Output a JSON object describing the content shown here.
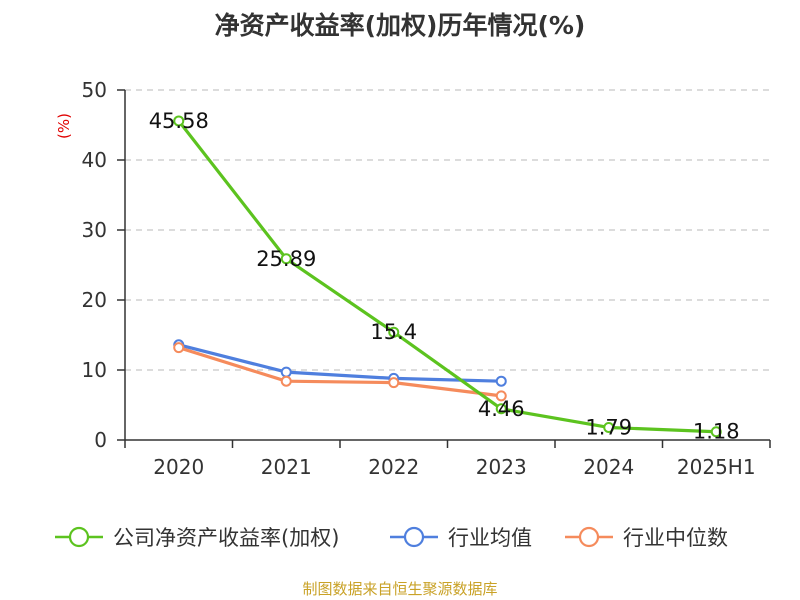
{
  "source_note": "制图数据来自恒生聚源数据库",
  "chart_data": {
    "type": "line",
    "title": "净资产收益率(加权)历年情况(%)",
    "ylabel": "(%)",
    "xlabel": "",
    "categories": [
      "2020",
      "2021",
      "2022",
      "2023",
      "2024",
      "2025H1"
    ],
    "ylim": [
      0,
      50
    ],
    "yticks": [
      0,
      10,
      20,
      30,
      40,
      50
    ],
    "grid": true,
    "legend_position": "bottom",
    "series": [
      {
        "name": "公司净资产收益率(加权)",
        "color": "#5cc31f",
        "values": [
          45.58,
          25.89,
          15.4,
          4.46,
          1.79,
          1.18
        ],
        "labels": [
          "45.58",
          "25.89",
          "15.4",
          "4.46",
          "1.79",
          "1.18"
        ]
      },
      {
        "name": "行业均值",
        "color": "#4f7fde",
        "values": [
          13.6,
          9.7,
          8.8,
          8.4,
          null,
          null
        ]
      },
      {
        "name": "行业中位数",
        "color": "#f58b5c",
        "values": [
          13.2,
          8.4,
          8.2,
          6.3,
          null,
          null
        ]
      }
    ]
  }
}
